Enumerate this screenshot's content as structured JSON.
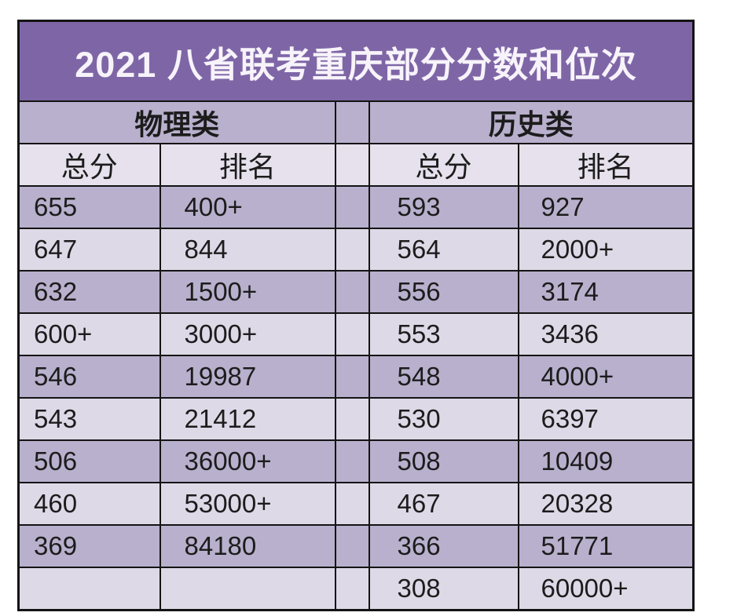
{
  "title": "2021 八省联考重庆部分分数和位次",
  "sections": {
    "physics": "物理类",
    "history": "历史类"
  },
  "columns": {
    "score": "总分",
    "rank": "排名"
  },
  "rows": [
    {
      "phys_score": "655",
      "phys_rank": "400+",
      "hist_score": "593",
      "hist_rank": "927"
    },
    {
      "phys_score": "647",
      "phys_rank": "844",
      "hist_score": "564",
      "hist_rank": "2000+"
    },
    {
      "phys_score": "632",
      "phys_rank": "1500+",
      "hist_score": "556",
      "hist_rank": "3174"
    },
    {
      "phys_score": "600+",
      "phys_rank": "3000+",
      "hist_score": "553",
      "hist_rank": "3436"
    },
    {
      "phys_score": "546",
      "phys_rank": "19987",
      "hist_score": "548",
      "hist_rank": "4000+"
    },
    {
      "phys_score": "543",
      "phys_rank": "21412",
      "hist_score": "530",
      "hist_rank": "6397"
    },
    {
      "phys_score": "506",
      "phys_rank": "36000+",
      "hist_score": "508",
      "hist_rank": "10409"
    },
    {
      "phys_score": "460",
      "phys_rank": "53000+",
      "hist_score": "467",
      "hist_rank": "20328"
    },
    {
      "phys_score": "369",
      "phys_rank": "84180",
      "hist_score": "366",
      "hist_rank": "51771"
    },
    {
      "phys_score": "",
      "phys_rank": "",
      "hist_score": "308",
      "hist_rank": "60000+"
    }
  ],
  "colors": {
    "title_bg": "#7e66a6",
    "dark_row": "#b9b0cd",
    "light_row": "#ded9e7",
    "header_row": "#e6e1ec",
    "border": "#141414",
    "title_text": "#f7f3fa"
  }
}
